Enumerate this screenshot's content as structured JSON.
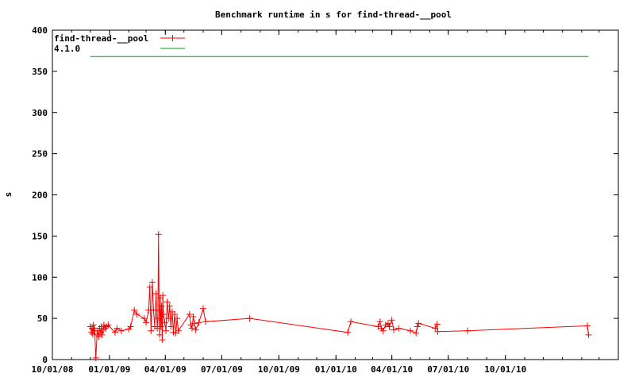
{
  "chart_data": {
    "type": "line",
    "title": "Benchmark runtime in s for find-thread-__pool",
    "xlabel": "",
    "ylabel": "s",
    "x_axis_type": "date",
    "xlim": [
      "2008-10-01",
      "2011-04-01"
    ],
    "ylim": [
      0,
      400
    ],
    "y_ticks": [
      0,
      50,
      100,
      150,
      200,
      250,
      300,
      350,
      400
    ],
    "x_ticks": [
      {
        "date": "2008-10-01",
        "label": "10/01/08"
      },
      {
        "date": "2009-01-01",
        "label": "01/01/09"
      },
      {
        "date": "2009-04-01",
        "label": "04/01/09"
      },
      {
        "date": "2009-07-01",
        "label": "07/01/09"
      },
      {
        "date": "2009-10-01",
        "label": "10/01/09"
      },
      {
        "date": "2010-01-01",
        "label": "01/01/10"
      },
      {
        "date": "2010-04-01",
        "label": "04/01/10"
      },
      {
        "date": "2010-07-01",
        "label": "07/01/10"
      },
      {
        "date": "2010-10-01",
        "label": "10/01/10"
      }
    ],
    "grid": false,
    "legend_position": "top-left",
    "series": [
      {
        "name": "find-thread-__pool",
        "color": "#ff0000",
        "marker": "plus",
        "points": [
          [
            "2008-12-01",
            40
          ],
          [
            "2008-12-03",
            33
          ],
          [
            "2008-12-04",
            38
          ],
          [
            "2008-12-05",
            31
          ],
          [
            "2008-12-06",
            42
          ],
          [
            "2008-12-07",
            35
          ],
          [
            "2008-12-08",
            38
          ],
          [
            "2008-12-10",
            2
          ],
          [
            "2008-12-12",
            30
          ],
          [
            "2008-12-13",
            35
          ],
          [
            "2008-12-15",
            28
          ],
          [
            "2008-12-16",
            38
          ],
          [
            "2008-12-18",
            32
          ],
          [
            "2008-12-19",
            40
          ],
          [
            "2008-12-20",
            30
          ],
          [
            "2008-12-22",
            36
          ],
          [
            "2008-12-23",
            42
          ],
          [
            "2008-12-25",
            38
          ],
          [
            "2008-12-27",
            40
          ],
          [
            "2008-12-30",
            42
          ],
          [
            "2009-01-10",
            33
          ],
          [
            "2009-01-13",
            38
          ],
          [
            "2009-01-20",
            35
          ],
          [
            "2009-02-01",
            37
          ],
          [
            "2009-02-04",
            40
          ],
          [
            "2009-02-10",
            60
          ],
          [
            "2009-02-14",
            55
          ],
          [
            "2009-02-26",
            50
          ],
          [
            "2009-03-01",
            45
          ],
          [
            "2009-03-05",
            60
          ],
          [
            "2009-03-07",
            88
          ],
          [
            "2009-03-09",
            35
          ],
          [
            "2009-03-11",
            94
          ],
          [
            "2009-03-13",
            60
          ],
          [
            "2009-03-15",
            40
          ],
          [
            "2009-03-17",
            80
          ],
          [
            "2009-03-19",
            38
          ],
          [
            "2009-03-20",
            50
          ],
          [
            "2009-03-21",
            152
          ],
          [
            "2009-03-22",
            60
          ],
          [
            "2009-03-23",
            30
          ],
          [
            "2009-03-24",
            75
          ],
          [
            "2009-03-25",
            40
          ],
          [
            "2009-03-26",
            65
          ],
          [
            "2009-03-27",
            24
          ],
          [
            "2009-03-28",
            78
          ],
          [
            "2009-03-29",
            55
          ],
          [
            "2009-03-31",
            45
          ],
          [
            "2009-04-02",
            35
          ],
          [
            "2009-04-04",
            70
          ],
          [
            "2009-04-06",
            50
          ],
          [
            "2009-04-08",
            65
          ],
          [
            "2009-04-10",
            40
          ],
          [
            "2009-04-12",
            58
          ],
          [
            "2009-04-14",
            33
          ],
          [
            "2009-04-16",
            55
          ],
          [
            "2009-04-18",
            32
          ],
          [
            "2009-04-20",
            50
          ],
          [
            "2009-04-22",
            35
          ],
          [
            "2009-05-10",
            55
          ],
          [
            "2009-05-12",
            42
          ],
          [
            "2009-05-14",
            38
          ],
          [
            "2009-05-16",
            52
          ],
          [
            "2009-05-18",
            44
          ],
          [
            "2009-05-20",
            36
          ],
          [
            "2009-05-25",
            45
          ],
          [
            "2009-06-01",
            62
          ],
          [
            "2009-06-05",
            46
          ],
          [
            "2009-08-15",
            50
          ],
          [
            "2010-01-20",
            33
          ],
          [
            "2010-01-25",
            46
          ],
          [
            "2010-03-10",
            40
          ],
          [
            "2010-03-13",
            46
          ],
          [
            "2010-03-15",
            38
          ],
          [
            "2010-03-18",
            35
          ],
          [
            "2010-03-22",
            42
          ],
          [
            "2010-03-26",
            44
          ],
          [
            "2010-03-28",
            40
          ],
          [
            "2010-04-01",
            48
          ],
          [
            "2010-04-04",
            36
          ],
          [
            "2010-04-12",
            38
          ],
          [
            "2010-05-01",
            35
          ],
          [
            "2010-05-10",
            32
          ],
          [
            "2010-05-12",
            40
          ],
          [
            "2010-05-14",
            44
          ],
          [
            "2010-06-10",
            38
          ],
          [
            "2010-06-13",
            43
          ],
          [
            "2010-06-14",
            34
          ],
          [
            "2010-08-01",
            35
          ],
          [
            "2011-02-10",
            41
          ],
          [
            "2011-02-12",
            30
          ]
        ]
      },
      {
        "name": "4.1.0",
        "color": "#00a000",
        "marker": "none",
        "points": [
          [
            "2008-12-01",
            368
          ],
          [
            "2011-02-12",
            368
          ]
        ]
      }
    ]
  }
}
